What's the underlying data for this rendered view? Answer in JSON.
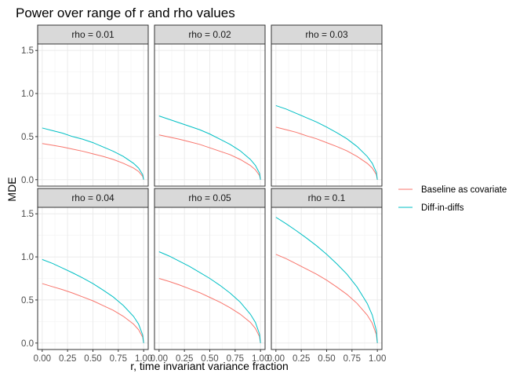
{
  "chart_data": {
    "type": "line",
    "title": "Power over range of r and rho values",
    "xlabel": "r, time invariant variance fraction",
    "ylabel": "MDE",
    "xlim": [
      0,
      1
    ],
    "ylim": [
      0,
      1.5
    ],
    "x_ticks": [
      "0.00",
      "0.25",
      "0.50",
      "0.75",
      "1.00"
    ],
    "y_ticks": [
      "0.0",
      "0.5",
      "1.0",
      "1.5"
    ],
    "grid": true,
    "facet_layout": "2 rows x 3 columns",
    "legend_position": "right",
    "colors": {
      "Baseline as covariate": "#F8766D",
      "Diff-in-diffs": "#00BFC4"
    },
    "x": [
      0,
      0.1,
      0.2,
      0.3,
      0.4,
      0.5,
      0.6,
      0.7,
      0.8,
      0.9,
      0.95,
      0.99,
      1.0
    ],
    "panels": [
      {
        "label": "rho = 0.01",
        "series": [
          {
            "name": "Baseline as covariate",
            "values": [
              0.42,
              0.4,
              0.38,
              0.355,
              0.33,
              0.3,
              0.27,
              0.235,
              0.19,
              0.135,
              0.095,
              0.04,
              0.0
            ]
          },
          {
            "name": "Diff-in-diffs",
            "values": [
              0.6,
              0.57,
              0.54,
              0.5,
              0.47,
              0.43,
              0.38,
              0.33,
              0.27,
              0.19,
              0.135,
              0.06,
              0.0
            ]
          }
        ]
      },
      {
        "label": "rho = 0.02",
        "series": [
          {
            "name": "Baseline as covariate",
            "values": [
              0.52,
              0.495,
              0.47,
              0.44,
              0.41,
              0.37,
              0.33,
              0.29,
              0.235,
              0.165,
              0.115,
              0.05,
              0.0
            ]
          },
          {
            "name": "Diff-in-diffs",
            "values": [
              0.74,
              0.7,
              0.66,
              0.62,
              0.58,
              0.53,
              0.47,
              0.41,
              0.335,
              0.235,
              0.165,
              0.075,
              0.0
            ]
          }
        ]
      },
      {
        "label": "rho = 0.03",
        "series": [
          {
            "name": "Baseline as covariate",
            "values": [
              0.61,
              0.58,
              0.55,
              0.51,
              0.475,
              0.43,
              0.385,
              0.335,
              0.27,
              0.19,
              0.135,
              0.06,
              0.0
            ]
          },
          {
            "name": "Diff-in-diffs",
            "values": [
              0.86,
              0.82,
              0.77,
              0.72,
              0.67,
              0.61,
              0.545,
              0.475,
              0.385,
              0.27,
              0.19,
              0.085,
              0.0
            ]
          }
        ]
      },
      {
        "label": "rho = 0.04",
        "series": [
          {
            "name": "Baseline as covariate",
            "values": [
              0.69,
              0.655,
              0.62,
              0.58,
              0.535,
              0.49,
              0.435,
              0.38,
              0.31,
              0.22,
              0.155,
              0.07,
              0.0
            ]
          },
          {
            "name": "Diff-in-diffs",
            "values": [
              0.97,
              0.925,
              0.87,
              0.815,
              0.755,
              0.69,
              0.615,
              0.535,
              0.435,
              0.31,
              0.22,
              0.095,
              0.0
            ]
          }
        ]
      },
      {
        "label": "rho = 0.05",
        "series": [
          {
            "name": "Baseline as covariate",
            "values": [
              0.75,
              0.715,
              0.675,
              0.63,
              0.585,
              0.53,
              0.475,
              0.41,
              0.335,
              0.24,
              0.17,
              0.075,
              0.0
            ]
          },
          {
            "name": "Diff-in-diffs",
            "values": [
              1.06,
              1.01,
              0.95,
              0.89,
              0.82,
              0.75,
              0.67,
              0.58,
              0.475,
              0.335,
              0.24,
              0.105,
              0.0
            ]
          }
        ]
      },
      {
        "label": "rho = 0.1",
        "series": [
          {
            "name": "Baseline as covariate",
            "values": [
              1.03,
              0.98,
              0.92,
              0.86,
              0.8,
              0.73,
              0.65,
              0.565,
              0.46,
              0.325,
              0.23,
              0.1,
              0.0
            ]
          },
          {
            "name": "Diff-in-diffs",
            "values": [
              1.46,
              1.385,
              1.305,
              1.22,
              1.13,
              1.03,
              0.92,
              0.8,
              0.65,
              0.46,
              0.325,
              0.145,
              0.0
            ]
          }
        ]
      }
    ]
  }
}
